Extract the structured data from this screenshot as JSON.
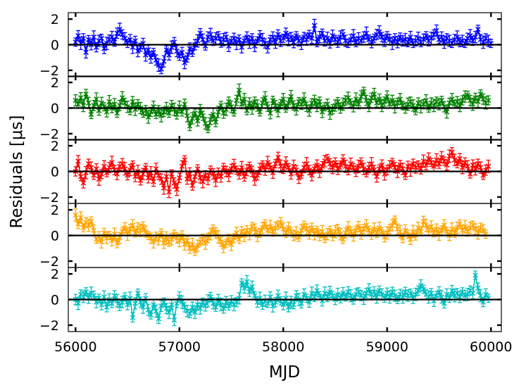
{
  "chart_data": {
    "type": "line",
    "layout": "5 vertically stacked panels sharing the x axis, no vertical gaps",
    "xlabel": "MJD",
    "ylabel": "Residuals [μs]",
    "xlim": [
      55930,
      60100
    ],
    "ylim": [
      -2.5,
      2.5
    ],
    "x_ticks": [
      56000,
      57000,
      58000,
      59000,
      60000
    ],
    "x_tick_labels": [
      "56000",
      "57000",
      "58000",
      "59000",
      "60000"
    ],
    "y_ticks": [
      -2,
      0,
      2
    ],
    "y_tick_labels": [
      "−2",
      "0",
      "2"
    ],
    "zero_line": 0,
    "grid": false,
    "marker": "x",
    "error_bars": true,
    "x_start": 56000,
    "x_step": 25,
    "series": [
      {
        "color": "#0000ff",
        "values": [
          0.2,
          0.7,
          0.1,
          0.5,
          -0.6,
          0.4,
          0.0,
          0.6,
          -0.2,
          0.3,
          0.5,
          -0.3,
          0.1,
          0.4,
          0.6,
          0.2,
          0.9,
          1.2,
          0.8,
          0.5,
          0.1,
          0.4,
          -0.2,
          0.3,
          -0.5,
          -0.2,
          0.1,
          -0.8,
          -0.4,
          -1.0,
          -0.6,
          -1.2,
          -1.6,
          -1.9,
          -1.3,
          -0.4,
          -0.8,
          -0.2,
          0.2,
          -0.5,
          -0.9,
          -0.6,
          -1.4,
          -1.0,
          -0.3,
          -0.6,
          0.0,
          0.3,
          0.9,
          0.4,
          -0.1,
          0.6,
          0.8,
          0.3,
          0.5,
          0.7,
          0.2,
          0.4,
          0.6,
          -0.1,
          0.3,
          0.5,
          0.1,
          0.4,
          -0.2,
          0.3,
          0.6,
          0.2,
          0.5,
          -0.1,
          0.3,
          0.7,
          0.4,
          0.1,
          -0.2,
          0.4,
          0.6,
          0.2,
          0.8,
          0.3,
          0.5,
          0.9,
          0.4,
          0.6,
          0.2,
          0.7,
          0.3,
          0.1,
          0.6,
          0.4,
          0.8,
          0.5,
          1.5,
          0.2,
          0.6,
          0.9,
          0.3,
          0.5,
          0.1,
          0.7,
          0.4,
          0.2,
          0.6,
          0.8,
          0.3,
          0.1,
          0.4,
          0.7,
          0.2,
          0.5,
          0.3,
          0.6,
          0.9,
          0.4,
          0.2,
          0.5,
          0.8,
          1.0,
          0.6,
          0.3,
          0.7,
          0.4,
          0.1,
          0.5,
          0.2,
          0.6,
          0.3,
          0.4,
          0.2,
          0.6,
          0.1,
          0.3,
          0.5,
          0.2,
          0.4,
          0.7,
          0.3,
          0.5,
          0.8,
          1.1,
          0.4,
          0.6,
          0.2,
          0.5,
          0.3,
          0.1,
          0.4,
          0.6,
          0.2,
          0.3,
          0.1,
          0.5,
          0.7,
          0.3,
          0.6,
          1.2,
          0.4,
          0.2,
          0.5,
          0.3,
          0.1
        ]
      },
      {
        "color": "#008000",
        "values": [
          0.6,
          0.3,
          0.8,
          0.2,
          1.1,
          0.4,
          -0.5,
          0.2,
          0.7,
          -0.2,
          0.4,
          0.1,
          -0.3,
          0.5,
          0.0,
          0.3,
          -0.4,
          0.2,
          0.8,
          0.4,
          0.1,
          -0.2,
          0.5,
          -0.1,
          0.3,
          0.0,
          -0.4,
          -0.2,
          -0.7,
          -0.3,
          0.1,
          -0.5,
          -0.2,
          -0.6,
          -0.3,
          0.0,
          -0.4,
          0.2,
          -0.1,
          -0.5,
          0.1,
          -0.3,
          0.3,
          -0.6,
          -1.4,
          -0.8,
          -0.4,
          -1.0,
          -0.2,
          -0.6,
          -1.2,
          -1.6,
          -0.9,
          -0.5,
          -1.1,
          -0.3,
          0.2,
          -0.4,
          -0.1,
          0.5,
          0.1,
          -0.3,
          0.6,
          1.4,
          0.3,
          0.7,
          -0.2,
          0.4,
          0.0,
          0.5,
          0.2,
          -0.3,
          0.4,
          0.8,
          0.1,
          -0.4,
          0.6,
          0.2,
          -0.2,
          0.3,
          0.7,
          0.0,
          0.4,
          0.9,
          0.2,
          -0.1,
          0.5,
          0.3,
          0.7,
          0.1,
          -0.2,
          0.4,
          0.6,
          0.2,
          0.5,
          -0.3,
          0.1,
          0.3,
          -0.4,
          -0.1,
          0.2,
          0.5,
          0.0,
          0.3,
          0.6,
          0.8,
          0.4,
          0.1,
          0.7,
          0.3,
          0.9,
          1.3,
          0.6,
          0.2,
          0.8,
          1.1,
          0.4,
          0.7,
          0.2,
          0.5,
          0.9,
          0.3,
          0.6,
          0.1,
          0.4,
          0.7,
          0.2,
          0.0,
          0.3,
          0.5,
          0.2,
          -0.2,
          0.4,
          0.1,
          0.3,
          0.6,
          0.0,
          0.4,
          0.2,
          0.5,
          0.3,
          0.6,
          0.1,
          -0.3,
          0.4,
          0.7,
          0.3,
          0.5,
          0.2,
          0.6,
          0.9,
          1.0,
          0.6,
          0.3,
          0.8,
          0.5,
          1.1,
          0.7,
          0.4,
          0.6
        ]
      },
      {
        "color": "#ff0000",
        "values": [
          0.0,
          0.8,
          -0.4,
          -0.9,
          -0.1,
          0.6,
          0.3,
          -0.3,
          0.2,
          -0.6,
          -0.2,
          0.4,
          -0.1,
          0.3,
          0.7,
          0.1,
          -0.2,
          0.4,
          0.6,
          0.2,
          -0.3,
          0.1,
          0.5,
          -0.4,
          0.0,
          -0.7,
          -0.2,
          0.3,
          -0.5,
          -0.1,
          -0.8,
          0.2,
          -0.3,
          -0.6,
          -1.3,
          -0.4,
          -1.6,
          -0.2,
          -0.9,
          -1.4,
          -0.5,
          0.4,
          0.9,
          -0.6,
          -0.2,
          -1.1,
          -0.4,
          0.2,
          -0.5,
          -0.8,
          -0.3,
          -0.6,
          0.1,
          -0.2,
          -0.7,
          -0.1,
          -0.4,
          0.3,
          0.0,
          -0.3,
          0.2,
          0.5,
          0.1,
          -0.2,
          0.3,
          -0.4,
          0.1,
          0.4,
          0.0,
          -0.6,
          -0.3,
          0.2,
          0.5,
          0.1,
          0.7,
          0.3,
          -0.1,
          0.6,
          1.1,
          0.4,
          0.2,
          0.7,
          0.3,
          -0.2,
          0.4,
          0.1,
          -0.5,
          -0.2,
          0.3,
          0.6,
          0.1,
          -0.3,
          0.2,
          0.5,
          0.0,
          0.4,
          0.8,
          1.0,
          0.6,
          0.3,
          0.7,
          0.2,
          0.5,
          0.9,
          0.4,
          0.1,
          0.6,
          0.3,
          0.0,
          0.4,
          0.7,
          0.2,
          -0.1,
          0.3,
          0.6,
          0.1,
          -0.4,
          0.2,
          0.5,
          -0.2,
          0.1,
          0.4,
          0.7,
          0.3,
          0.0,
          0.5,
          0.2,
          -0.3,
          0.4,
          0.1,
          0.6,
          0.3,
          0.5,
          0.2,
          0.8,
          0.5,
          1.0,
          0.7,
          0.4,
          0.9,
          0.6,
          1.1,
          0.8,
          0.5,
          1.2,
          1.5,
          0.9,
          0.6,
          1.0,
          0.3,
          0.7,
          0.4,
          -0.2,
          0.5,
          0.2,
          0.6,
          0.3,
          -0.3,
          0.1,
          0.4
        ]
      },
      {
        "color": "#ffa500",
        "values": [
          1.6,
          0.9,
          1.4,
          0.6,
          1.0,
          0.8,
          1.1,
          0.4,
          -0.3,
          -0.1,
          -0.5,
          0.2,
          -0.2,
          0.0,
          -0.4,
          0.1,
          -0.6,
          -0.2,
          0.3,
          0.6,
          0.1,
          0.5,
          0.8,
          0.2,
          0.6,
          0.4,
          0.7,
          0.3,
          0.0,
          -0.2,
          -0.5,
          -0.1,
          -0.3,
          0.2,
          -0.6,
          -0.2,
          -0.5,
          -0.3,
          0.1,
          -0.2,
          -0.4,
          0.0,
          -0.7,
          -0.4,
          -1.0,
          -0.7,
          -1.2,
          -0.8,
          -0.5,
          -0.3,
          -0.6,
          -0.2,
          0.1,
          0.5,
          0.2,
          -0.1,
          -0.5,
          -0.9,
          -0.6,
          -0.3,
          -0.7,
          -0.2,
          0.2,
          -0.3,
          0.3,
          0.0,
          0.4,
          0.1,
          0.7,
          0.5,
          0.0,
          0.2,
          0.6,
          0.9,
          0.4,
          0.7,
          0.3,
          0.6,
          0.8,
          1.0,
          0.5,
          0.2,
          0.6,
          0.3,
          0.0,
          0.2,
          -0.1,
          0.4,
          0.8,
          0.5,
          0.2,
          0.6,
          0.1,
          0.4,
          0.0,
          0.3,
          -0.2,
          0.1,
          0.4,
          0.0,
          0.3,
          0.5,
          0.1,
          -0.3,
          0.2,
          0.6,
          0.3,
          0.0,
          0.4,
          0.7,
          0.2,
          0.5,
          0.8,
          0.4,
          0.1,
          0.5,
          0.2,
          0.6,
          0.3,
          -0.1,
          0.2,
          0.5,
          0.8,
          1.2,
          0.5,
          0.3,
          -0.2,
          0.4,
          0.1,
          -0.3,
          0.3,
          0.0,
          0.6,
          0.3,
          1.1,
          0.8,
          0.4,
          0.7,
          0.2,
          0.5,
          0.1,
          0.4,
          0.8,
          0.3,
          0.0,
          0.5,
          0.2,
          0.6,
          0.9,
          0.4,
          0.7,
          0.3,
          0.6,
          0.8,
          0.5,
          0.2,
          0.6,
          0.4,
          0.1
        ]
      },
      {
        "color": "#00bfbf",
        "values": [
          0.0,
          -0.3,
          0.4,
          0.2,
          0.6,
          0.1,
          0.5,
          0.3,
          -0.2,
          0.1,
          -0.4,
          0.2,
          -0.6,
          0.0,
          -0.3,
          0.3,
          -0.1,
          -0.5,
          -0.2,
          0.2,
          -0.4,
          0.1,
          -1.4,
          -0.3,
          0.5,
          -0.2,
          -0.6,
          0.1,
          -0.8,
          -1.2,
          -0.4,
          -0.9,
          -1.5,
          -0.5,
          -0.2,
          -0.7,
          -1.0,
          -0.4,
          -1.6,
          -0.3,
          0.2,
          -0.2,
          -0.6,
          -0.9,
          -1.1,
          -0.6,
          -1.0,
          -0.4,
          -0.7,
          -0.2,
          -0.5,
          -0.1,
          0.2,
          -0.3,
          -0.6,
          0.0,
          -0.4,
          -0.7,
          -0.2,
          -0.5,
          -0.1,
          -0.4,
          -0.2,
          0.1,
          1.3,
          0.9,
          1.4,
          0.6,
          1.0,
          0.3,
          -0.2,
          0.1,
          -0.4,
          -0.1,
          -0.3,
          0.2,
          -0.5,
          -0.2,
          0.3,
          -0.1,
          -0.4,
          0.1,
          -0.6,
          -0.2,
          -0.4,
          0.3,
          0.0,
          -0.3,
          0.4,
          0.1,
          -0.2,
          0.5,
          0.2,
          0.7,
          0.3,
          -0.1,
          0.5,
          0.2,
          0.6,
          0.3,
          0.0,
          0.4,
          0.1,
          0.5,
          0.2,
          0.6,
          0.3,
          0.0,
          0.4,
          0.6,
          0.3,
          0.1,
          0.5,
          0.8,
          0.4,
          0.6,
          0.2,
          0.7,
          0.4,
          0.1,
          0.5,
          0.2,
          0.6,
          0.3,
          0.0,
          0.4,
          0.2,
          0.6,
          0.3,
          0.5,
          0.1,
          0.4,
          0.7,
          1.1,
          0.8,
          0.4,
          0.2,
          0.5,
          -0.1,
          0.3,
          0.6,
          0.2,
          -0.3,
          0.4,
          0.1,
          0.7,
          0.3,
          0.5,
          0.2,
          0.6,
          0.3,
          0.4,
          0.7,
          0.5,
          1.9,
          0.9,
          0.3,
          -0.2,
          0.4,
          0.1
        ]
      }
    ]
  }
}
